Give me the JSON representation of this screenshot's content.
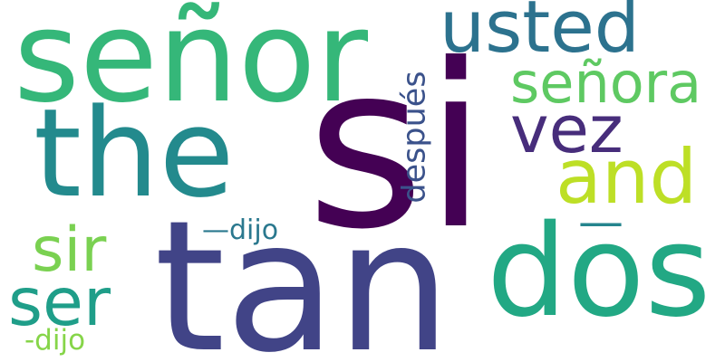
{
  "word_cloud": {
    "words": [
      {
        "id": "si",
        "text": "si",
        "color": "#440154"
      },
      {
        "id": "tan",
        "text": "tan",
        "color": "#414487"
      },
      {
        "id": "senor",
        "text": "señor",
        "color": "#35b779"
      },
      {
        "id": "the",
        "text": "the",
        "color": "#238a8d"
      },
      {
        "id": "dos",
        "text": "dos",
        "color": "#22a884"
      },
      {
        "id": "usted",
        "text": "usted",
        "color": "#2c728e"
      },
      {
        "id": "and",
        "text": "and",
        "color": "#bddf26"
      },
      {
        "id": "senora",
        "text": "señora",
        "color": "#5ec962"
      },
      {
        "id": "vez",
        "text": "vez",
        "color": "#472d7b"
      },
      {
        "id": "sir",
        "text": "sir",
        "color": "#7ad151"
      },
      {
        "id": "ser",
        "text": "ser",
        "color": "#1f9e89"
      },
      {
        "id": "despues",
        "text": "después",
        "color": "#3b528b"
      },
      {
        "id": "dash",
        "text": "—",
        "color": "#25858e"
      },
      {
        "id": "dijo-emdash",
        "text": "—dijo",
        "color": "#2a788e"
      },
      {
        "id": "dijo-hyphen",
        "text": "-dijo",
        "color": "#86d549"
      }
    ]
  }
}
